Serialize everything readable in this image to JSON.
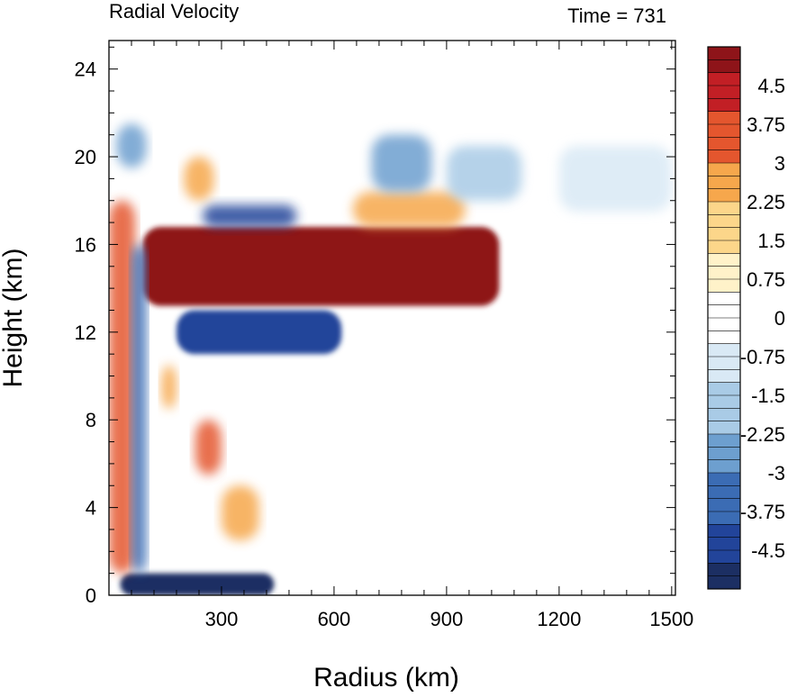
{
  "chart_data": {
    "type": "heatmap",
    "title": "Radial Velocity",
    "subtitle": "Time = 731",
    "xlabel": "Radius (km)",
    "ylabel": "Height (km)",
    "xlim": [
      0,
      1510
    ],
    "ylim": [
      0,
      25.3
    ],
    "x_ticks": [
      300,
      600,
      900,
      1200,
      1500
    ],
    "y_ticks": [
      0,
      4,
      8,
      12,
      16,
      20,
      24
    ],
    "colorbar": {
      "min": -5.25,
      "max": 5.25,
      "step": 0.25,
      "labels": [
        "4.5",
        "3.75",
        "3",
        "2.25",
        "1.5",
        "0.75",
        "0",
        "-0.75",
        "-1.5",
        "-2.25",
        "-3",
        "-3.75",
        "-4.5"
      ],
      "label_values": [
        4.5,
        3.75,
        3,
        2.25,
        1.5,
        0.75,
        0,
        -0.75,
        -1.5,
        -2.25,
        -3,
        -3.75,
        -4.5
      ],
      "palette": [
        "#1c2f63",
        "#22449a",
        "#3b6cb4",
        "#6d9fcf",
        "#a9cbe6",
        "#d9e9f5",
        "#ffffff",
        "#fff2c9",
        "#fcd68a",
        "#f6a74c",
        "#e4562e",
        "#c21f25",
        "#8e1419"
      ]
    },
    "features": [
      {
        "x": [
          90,
          1040
        ],
        "y": [
          13.2,
          16.8
        ],
        "value": 5.0
      },
      {
        "x": [
          180,
          620
        ],
        "y": [
          11.0,
          13.0
        ],
        "value": -4.8
      },
      {
        "x": [
          30,
          440
        ],
        "y": [
          0,
          1.0
        ],
        "value": -5.0
      },
      {
        "x": [
          250,
          500
        ],
        "y": [
          16.8,
          17.8
        ],
        "value": -4.0
      },
      {
        "x": [
          650,
          950
        ],
        "y": [
          16.8,
          18.4
        ],
        "value": 3.0
      },
      {
        "x": [
          700,
          860
        ],
        "y": [
          18.4,
          21.0
        ],
        "value": -3.0
      },
      {
        "x": [
          900,
          1100
        ],
        "y": [
          18.0,
          20.5
        ],
        "value": -1.5
      },
      {
        "x": [
          1200,
          1500
        ],
        "y": [
          17.5,
          20.5
        ],
        "value": -1.2
      },
      {
        "x": [
          230,
          300
        ],
        "y": [
          5.5,
          8.0
        ],
        "value": 3.5
      },
      {
        "x": [
          300,
          400
        ],
        "y": [
          2.5,
          5.0
        ],
        "value": 3.0
      },
      {
        "x": [
          0,
          70
        ],
        "y": [
          1.0,
          18.0
        ],
        "value": 3.5
      },
      {
        "x": [
          60,
          100
        ],
        "y": [
          1.0,
          16.0
        ],
        "value": -3.5
      },
      {
        "x": [
          140,
          180
        ],
        "y": [
          8.5,
          10.5
        ],
        "value": 3.0
      },
      {
        "x": [
          200,
          280
        ],
        "y": [
          18.0,
          20.0
        ],
        "value": 2.5
      },
      {
        "x": [
          20,
          100
        ],
        "y": [
          19.5,
          21.5
        ],
        "value": -3.0
      }
    ]
  }
}
